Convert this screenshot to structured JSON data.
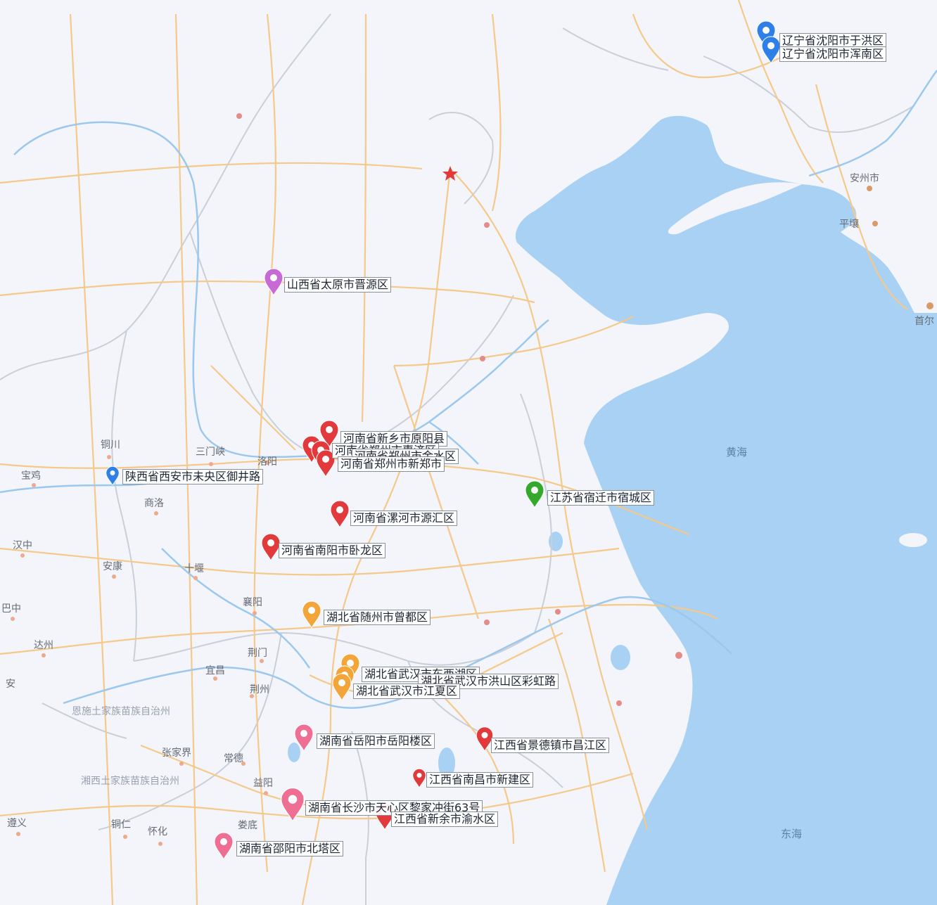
{
  "colors": {
    "land": "#f3f5fa",
    "sea": "#a8d1f4",
    "highway": "#f4c98a",
    "river": "#9cc8ee",
    "border": "#c9cfd9",
    "red": "#e2393c",
    "orange": "#f4a53a",
    "purple": "#c86ad6",
    "blue": "#2f7fe8",
    "green": "#35a92c",
    "pink": "#ef6f94"
  },
  "seas": {
    "yellow_sea": "黄海",
    "east_china_sea": "东海"
  },
  "places": {
    "anzhou": "安州市",
    "pingrang": "平壤",
    "shouer": "首尔",
    "tongchuan": "铜川",
    "sanmenxia": "三门峡",
    "luoyang": "洛阳",
    "baoji": "宝鸡",
    "shangluo": "商洛",
    "hanzhong": "汉中",
    "ankang": "安康",
    "shiyan": "十堰",
    "xiangyang": "襄阳",
    "bazhong": "巴中",
    "dazhou": "达州",
    "jingmen": "荆门",
    "yichang": "宜昌",
    "jingzhou": "荆州",
    "an": "安",
    "enshi": "恩施土家族苗族自治州",
    "zhangjiajie": "张家界",
    "changde": "常德",
    "xiangxi": "湘西土家族苗族自治州",
    "yiyang": "益阳",
    "zunyi": "遵义",
    "tongren": "铜仁",
    "huaihua": "怀化",
    "loudi": "娄底"
  },
  "markers": [
    {
      "id": "shenyang-a",
      "color": "blue",
      "label": "辽宁省沈阳市于洪区"
    },
    {
      "id": "shenyang-b",
      "color": "blue",
      "label": "辽宁省沈阳市浑南区"
    },
    {
      "id": "taiyuan",
      "color": "purple",
      "label": "山西省太原市晋源区"
    },
    {
      "id": "xinxiang",
      "color": "red",
      "label": "河南省新乡市原阳县"
    },
    {
      "id": "zhengzhou-a",
      "color": "red",
      "label": "河南省郑州市惠济区"
    },
    {
      "id": "zhengzhou-b",
      "color": "red",
      "label": "河南省郑州市金水区"
    },
    {
      "id": "zhengzhou-c",
      "color": "red",
      "label": "河南省郑州市新郑市"
    },
    {
      "id": "xian",
      "color": "blue",
      "label": "陕西省西安市未央区御井路"
    },
    {
      "id": "suqian",
      "color": "green",
      "label": "江苏省宿迁市宿城区"
    },
    {
      "id": "luohe",
      "color": "red",
      "label": "河南省漯河市源汇区"
    },
    {
      "id": "nanyang",
      "color": "red",
      "label": "河南省南阳市卧龙区"
    },
    {
      "id": "suizhou",
      "color": "orange",
      "label": "湖北省随州市曾都区"
    },
    {
      "id": "wuhan-a",
      "color": "orange",
      "label": "湖北省武汉市东西湖区"
    },
    {
      "id": "wuhan-b",
      "color": "orange",
      "label": "湖北省武汉市洪山区彩虹路"
    },
    {
      "id": "wuhan-c",
      "color": "orange",
      "label": "湖北省武汉市江夏区"
    },
    {
      "id": "yueyang",
      "color": "pink",
      "label": "湖南省岳阳市岳阳楼区"
    },
    {
      "id": "jingdezhen",
      "color": "red",
      "label": "江西省景德镇市昌江区"
    },
    {
      "id": "nanchang",
      "color": "red",
      "label": "江西省南昌市新建区"
    },
    {
      "id": "changsha",
      "color": "pink",
      "label": "湖南省长沙市天心区黎家冲街63号"
    },
    {
      "id": "xinyu",
      "color": "red",
      "label": "江西省新余市渝水区"
    },
    {
      "id": "shaoyang",
      "color": "pink",
      "label": "湖南省邵阳市北塔区"
    }
  ]
}
